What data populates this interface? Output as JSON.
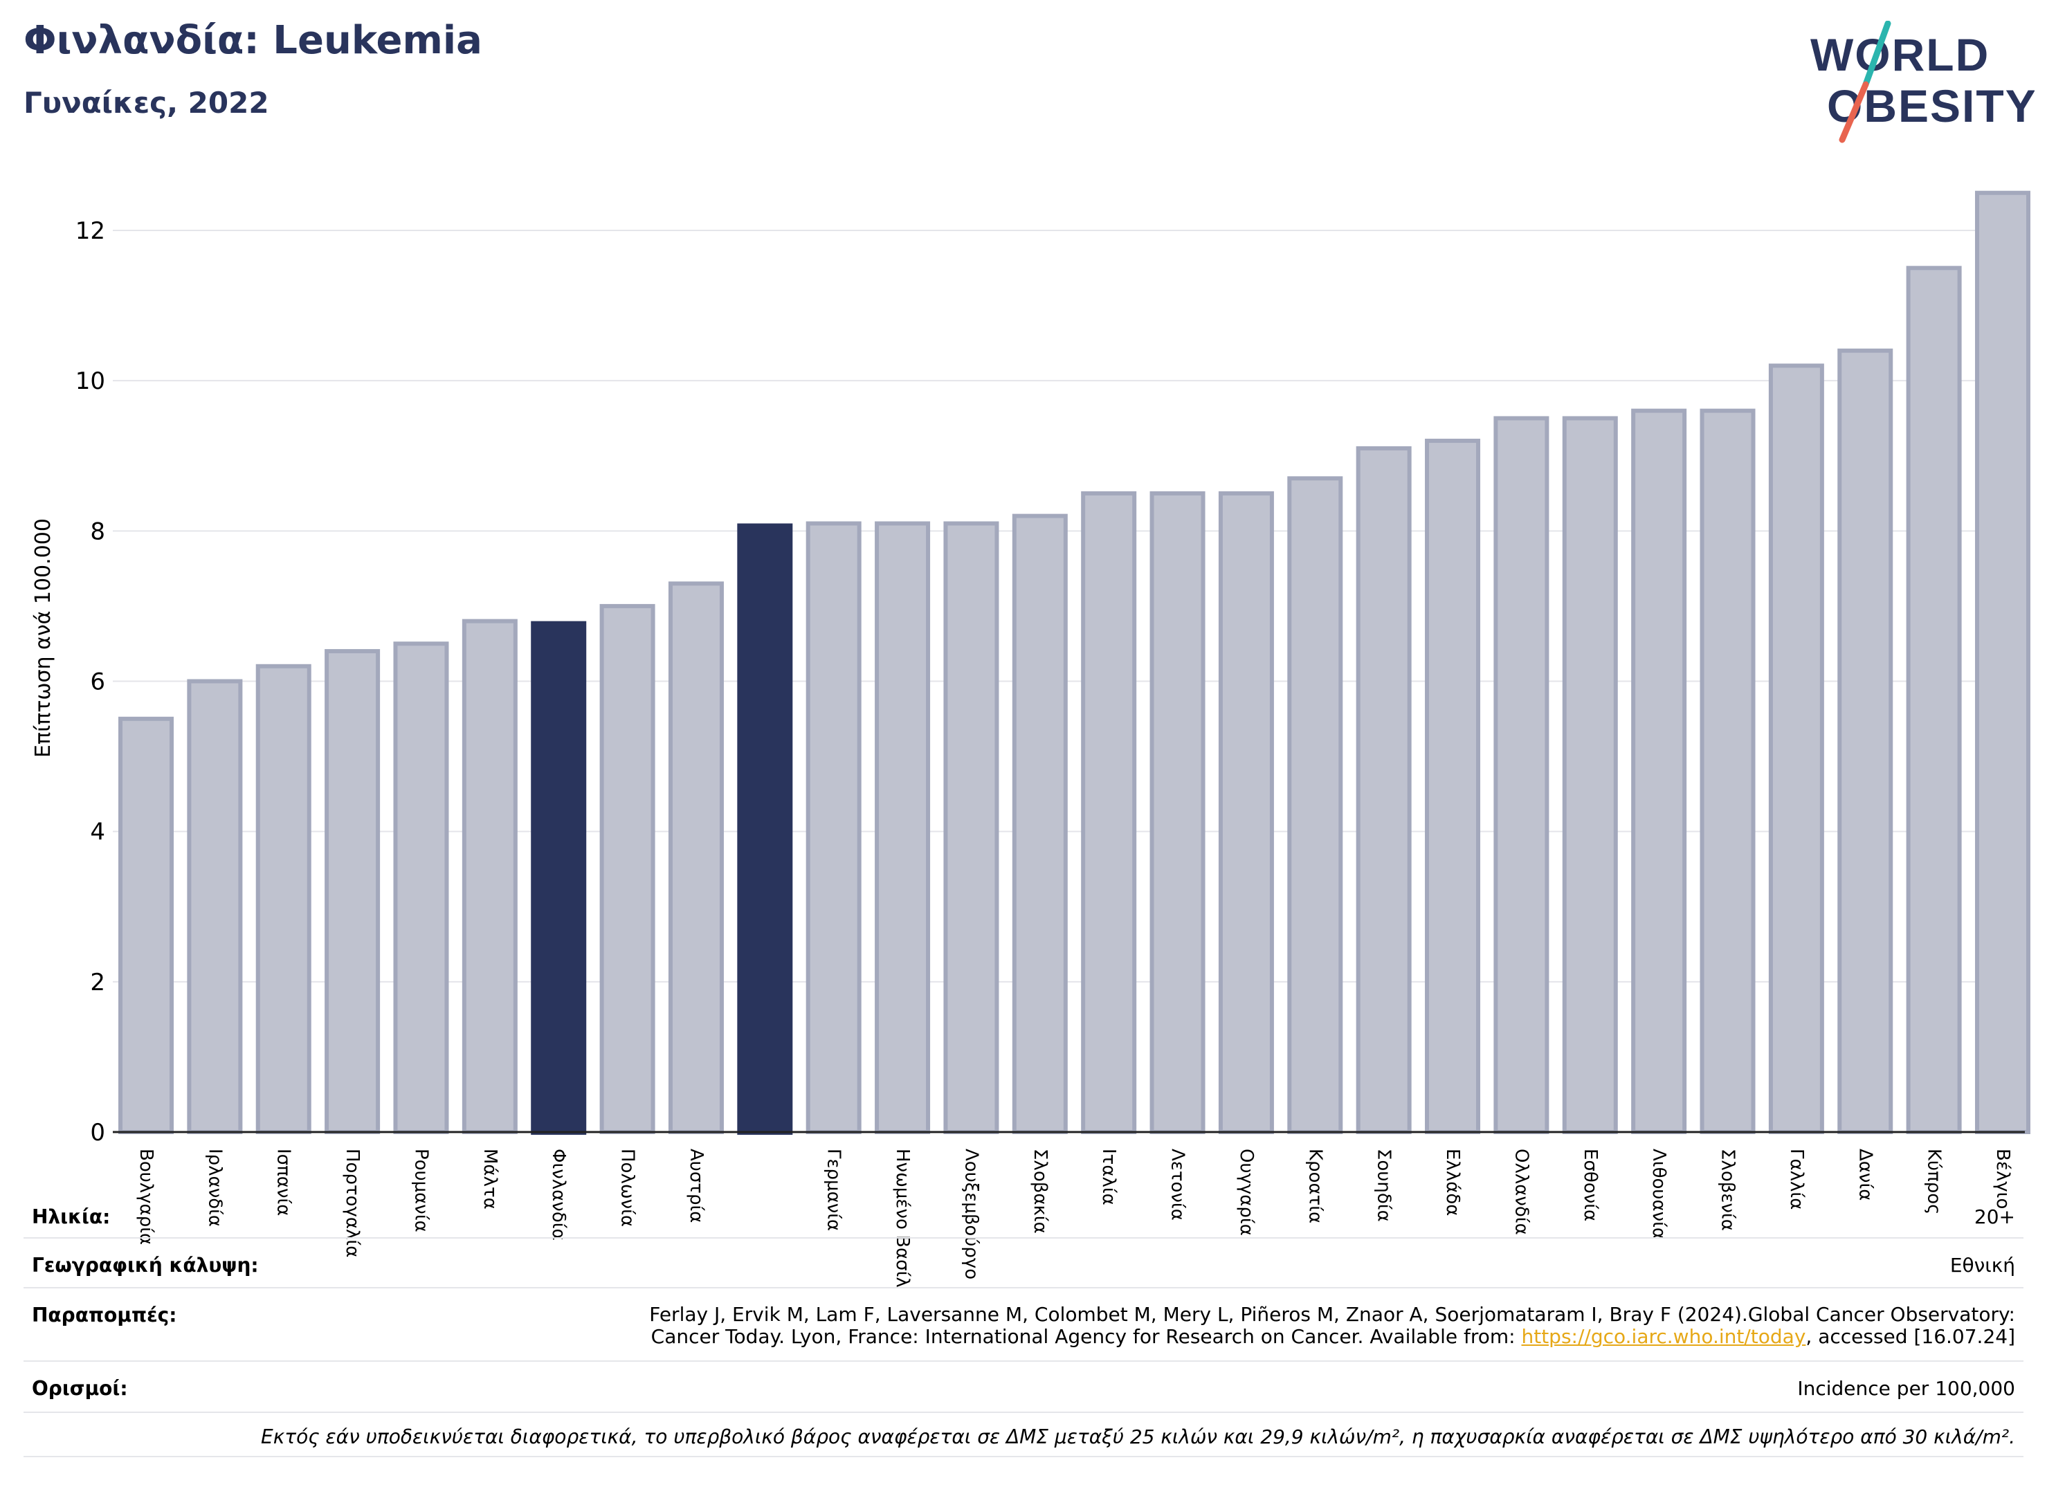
{
  "header": {
    "title": "Φινλανδία: Leukemia",
    "subtitle": "Γυναίκες, 2022"
  },
  "logo": {
    "line1": "WORLD",
    "line2": "OBESITY",
    "colors": {
      "text": "#29345c",
      "slash_top": "#2bb5ae",
      "slash_bottom": "#e8644f"
    }
  },
  "chart_data": {
    "type": "bar",
    "ylabel": "Επίπτωση ανά 100.000",
    "xlabel": "",
    "ylim": [
      0,
      12.7
    ],
    "yticks": [
      0,
      2,
      4,
      6,
      8,
      10,
      12
    ],
    "grid": true,
    "colors": {
      "default": "#bfc2cf",
      "default_border": "#a3a8bc",
      "highlight": "#29345c"
    },
    "categories": [
      "Βουλγαρία",
      "Ιρλανδία",
      "Ισπανία",
      "Πορτογαλία",
      "Ρουμανία",
      "Μάλτα",
      "Φινλανδία",
      "Πολωνία",
      "Αυστρία",
      "",
      "Γερμανία",
      "Ηνωμένο Βασίλειο",
      "Λουξεμβούργο",
      "Σλοβακία",
      "Ιταλία",
      "Λετονία",
      "Ουγγαρία",
      "Κροατία",
      "Σουηδία",
      "Ελλάδα",
      "Ολλανδία",
      "Εσθονία",
      "Λιθουανία",
      "Σλοβενία",
      "Γαλλία",
      "Δανία",
      "Κύπρος",
      "Βέλγιο"
    ],
    "values": [
      5.5,
      6.0,
      6.2,
      6.4,
      6.5,
      6.8,
      6.8,
      7.0,
      7.3,
      8.1,
      8.1,
      8.1,
      8.1,
      8.2,
      8.5,
      8.5,
      8.5,
      8.7,
      9.1,
      9.2,
      9.5,
      9.5,
      9.6,
      9.6,
      10.2,
      10.4,
      11.5,
      12.5
    ],
    "highlight": [
      6,
      9
    ]
  },
  "info": {
    "age_label": "Ηλικία:",
    "age_value": "20+",
    "coverage_label": "Γεωγραφική κάλυψη:",
    "coverage_value": "Εθνική",
    "refs_label": "Παραπομπές:",
    "refs_line1": "Ferlay J, Ervik M, Lam F, Laversanne M, Colombet M, Mery L, Piñeros M, Znaor A, Soerjomataram I, Bray F (2024).Global Cancer Observatory:",
    "refs_line2_pre": "Cancer Today. Lyon, France: International Agency for Research on Cancer. Available from: ",
    "refs_link": "https://gco.iarc.who.int/today",
    "refs_line2_post": ", accessed [16.07.24]",
    "definitions_label": "Ορισμοί:",
    "definitions_value": "Incidence per 100,000",
    "note": "Εκτός εάν υποδεικνύεται διαφορετικά, το υπερβολικό βάρος αναφέρεται σε ΔΜΣ μεταξύ 25 κιλών και 29,9 κιλών/m², η παχυσαρκία αναφέρεται σε ΔΜΣ υψηλότερο από 30 κιλά/m²."
  }
}
